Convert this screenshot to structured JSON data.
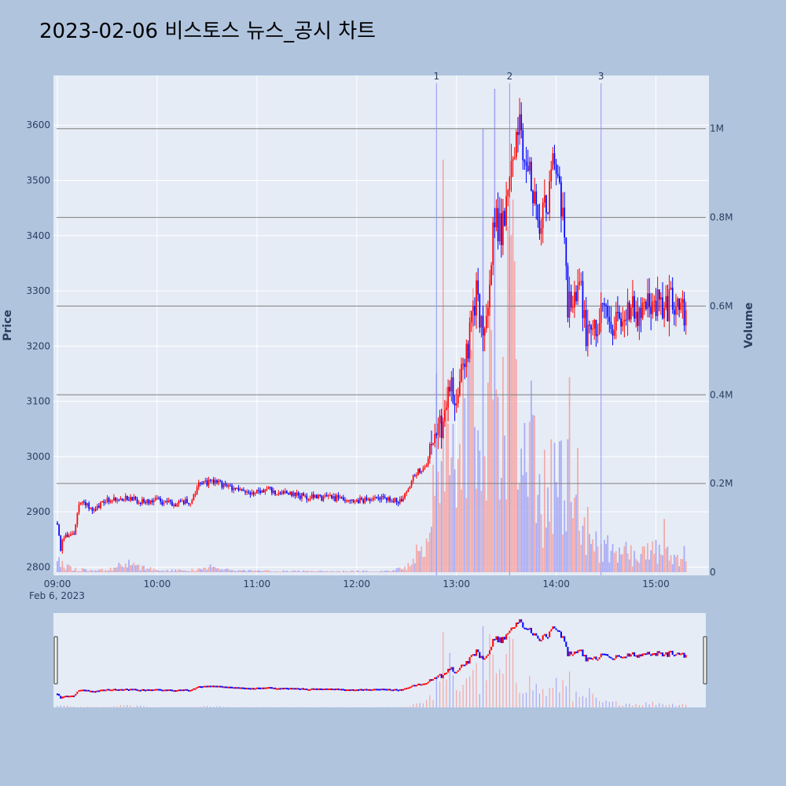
{
  "chart_data": {
    "type": "candlestick",
    "title": "2023-02-06 비스토스 뉴스_공시 차트",
    "ylabel": "Price",
    "y2label": "Volume",
    "date_label": "Feb 6, 2023",
    "ylim": [
      2785,
      3690
    ],
    "y2lim": [
      0,
      1120000
    ],
    "price_ticks": [
      "2800",
      "2900",
      "3000",
      "3100",
      "3200",
      "3300",
      "3400",
      "3500",
      "3600"
    ],
    "volume_ticks": [
      {
        "value": 0,
        "label": "0"
      },
      {
        "value": 200000,
        "label": "0.2M"
      },
      {
        "value": 400000,
        "label": "0.4M"
      },
      {
        "value": 600000,
        "label": "0.6M"
      },
      {
        "value": 800000,
        "label": "0.8M"
      },
      {
        "value": 1000000,
        "label": "1M"
      }
    ],
    "time_ticks": [
      "09:00",
      "10:00",
      "11:00",
      "12:00",
      "13:00",
      "14:00",
      "15:00"
    ],
    "news_markers": [
      {
        "time": "12:48",
        "label": "1"
      },
      {
        "time": "13:32",
        "label": "2"
      },
      {
        "time": "14:27",
        "label": "3"
      }
    ],
    "price_path": [
      [
        "09:00",
        2880
      ],
      [
        "09:02",
        2835
      ],
      [
        "09:05",
        2860
      ],
      [
        "09:10",
        2855
      ],
      [
        "09:13",
        2915
      ],
      [
        "09:16",
        2920
      ],
      [
        "09:20",
        2905
      ],
      [
        "09:25",
        2910
      ],
      [
        "09:30",
        2920
      ],
      [
        "09:40",
        2925
      ],
      [
        "09:50",
        2920
      ],
      [
        "10:00",
        2920
      ],
      [
        "10:10",
        2915
      ],
      [
        "10:20",
        2920
      ],
      [
        "10:25",
        2950
      ],
      [
        "10:35",
        2955
      ],
      [
        "10:45",
        2940
      ],
      [
        "10:55",
        2935
      ],
      [
        "11:05",
        2940
      ],
      [
        "11:15",
        2935
      ],
      [
        "11:25",
        2930
      ],
      [
        "11:35",
        2925
      ],
      [
        "11:50",
        2925
      ],
      [
        "12:05",
        2920
      ],
      [
        "12:15",
        2925
      ],
      [
        "12:25",
        2920
      ],
      [
        "12:30",
        2930
      ],
      [
        "12:35",
        2970
      ],
      [
        "12:42",
        2985
      ],
      [
        "12:48",
        3060
      ],
      [
        "12:52",
        3040
      ],
      [
        "12:56",
        3130
      ],
      [
        "13:00",
        3100
      ],
      [
        "13:04",
        3160
      ],
      [
        "13:08",
        3220
      ],
      [
        "13:12",
        3290
      ],
      [
        "13:16",
        3230
      ],
      [
        "13:20",
        3320
      ],
      [
        "13:23",
        3440
      ],
      [
        "13:27",
        3400
      ],
      [
        "13:31",
        3480
      ],
      [
        "13:35",
        3540
      ],
      [
        "13:38",
        3620
      ],
      [
        "13:41",
        3540
      ],
      [
        "13:45",
        3500
      ],
      [
        "13:50",
        3420
      ],
      [
        "13:54",
        3450
      ],
      [
        "13:58",
        3520
      ],
      [
        "14:02",
        3480
      ],
      [
        "14:05",
        3400
      ],
      [
        "14:07",
        3280
      ],
      [
        "14:10",
        3300
      ],
      [
        "14:15",
        3290
      ],
      [
        "14:18",
        3210
      ],
      [
        "14:23",
        3230
      ],
      [
        "14:28",
        3260
      ],
      [
        "14:35",
        3240
      ],
      [
        "14:40",
        3250
      ],
      [
        "14:45",
        3265
      ],
      [
        "14:50",
        3260
      ],
      [
        "14:55",
        3270
      ],
      [
        "15:00",
        3275
      ],
      [
        "15:05",
        3270
      ],
      [
        "15:10",
        3280
      ],
      [
        "15:15",
        3270
      ],
      [
        "15:18",
        3265
      ]
    ],
    "volume_profile": [
      [
        "09:00",
        30000
      ],
      [
        "09:10",
        8000
      ],
      [
        "09:30",
        5000
      ],
      [
        "09:40",
        25000
      ],
      [
        "10:00",
        5000
      ],
      [
        "10:20",
        5000
      ],
      [
        "10:30",
        15000
      ],
      [
        "10:45",
        5000
      ],
      [
        "11:30",
        3000
      ],
      [
        "12:15",
        3000
      ],
      [
        "12:30",
        10000
      ],
      [
        "12:35",
        50000
      ],
      [
        "12:45",
        120000
      ],
      [
        "12:48",
        350000
      ],
      [
        "12:52",
        160000
      ],
      [
        "12:56",
        500000
      ],
      [
        "13:00",
        180000
      ],
      [
        "13:05",
        420000
      ],
      [
        "13:10",
        560000
      ],
      [
        "13:15",
        260000
      ],
      [
        "13:20",
        700000
      ],
      [
        "13:25",
        380000
      ],
      [
        "13:30",
        480000
      ],
      [
        "13:32",
        680000
      ],
      [
        "13:38",
        370000
      ],
      [
        "13:45",
        320000
      ],
      [
        "13:50",
        220000
      ],
      [
        "13:55",
        200000
      ],
      [
        "14:05",
        340000
      ],
      [
        "14:08",
        200000
      ],
      [
        "14:15",
        100000
      ],
      [
        "14:20",
        180000
      ],
      [
        "14:25",
        70000
      ],
      [
        "14:35",
        60000
      ],
      [
        "14:50",
        45000
      ],
      [
        "15:00",
        60000
      ],
      [
        "15:05",
        50000
      ],
      [
        "15:10",
        40000
      ],
      [
        "15:15",
        50000
      ]
    ],
    "volume_spikes": [
      [
        "12:52",
        930000
      ],
      [
        "13:16",
        1000000
      ],
      [
        "13:23",
        1090000
      ],
      [
        "13:31",
        780000
      ],
      [
        "13:34",
        840000
      ],
      [
        "14:08",
        440000
      ],
      [
        "14:13",
        280000
      ],
      [
        "15:05",
        120000
      ]
    ],
    "colors": {
      "up": "#ff0000",
      "down": "#0000ff",
      "up_volume": "#f4a7a7",
      "down_volume": "#a7a9f4",
      "marker_line": "#8f94ee",
      "hline": "#7f7f7f",
      "plot_bg": "#e5ecf6",
      "grid": "#ffffff",
      "title": "#e84a5f",
      "page_bg": "#b0c4de"
    }
  }
}
